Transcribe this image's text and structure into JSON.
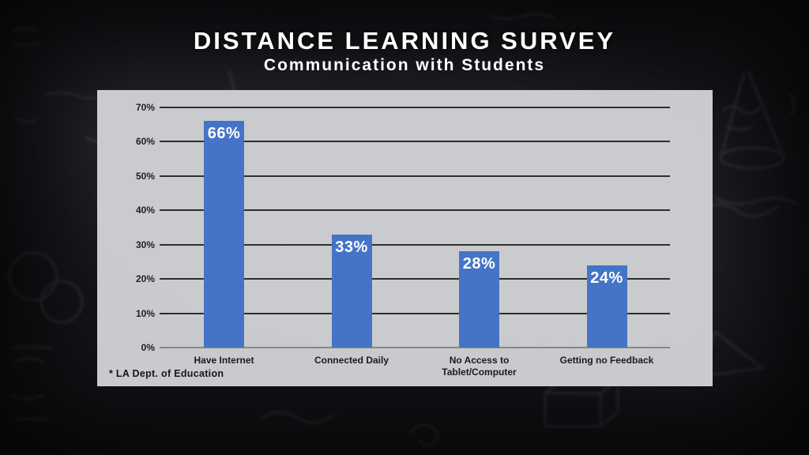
{
  "header": {
    "title": "DISTANCE LEARNING SURVEY",
    "subtitle": "Communication with Students"
  },
  "chart_data": {
    "type": "bar",
    "title": "Distance Learning Survey",
    "subtitle": "Communication with Students",
    "categories": [
      "Have Internet",
      "Connected Daily",
      "No Access to Tablet/Computer",
      "Getting no Feedback"
    ],
    "values": [
      66,
      33,
      28,
      24
    ],
    "value_labels": [
      "66%",
      "33%",
      "28%",
      "24%"
    ],
    "xlabel": "",
    "ylabel": "",
    "ylim": [
      0,
      70
    ],
    "ytick_step": 10,
    "ytick_labels": [
      "0%",
      "10%",
      "20%",
      "30%",
      "40%",
      "50%",
      "60%",
      "70%"
    ],
    "grid": true,
    "legend": "none",
    "bar_color": "#4574c6",
    "value_label_color": "#ffffff",
    "panel_background": "#d1d2d5",
    "gridline_color": "#2e2e31"
  },
  "footnote": {
    "text": "* LA Dept. of Education"
  },
  "background": {
    "style": "dark chalkboard with faint math and chemistry chalk drawings",
    "base_color": "#15161a",
    "chalk_color": "#d4d8de"
  }
}
